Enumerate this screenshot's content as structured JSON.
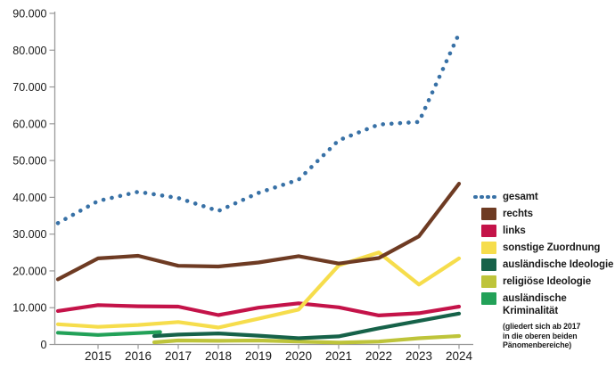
{
  "chart_data": {
    "type": "line",
    "x_unit": "year",
    "xlim": [
      2014,
      2024
    ],
    "ylim": [
      0,
      90000
    ],
    "grid": false,
    "legend_position": "right",
    "axis_color": "#999999",
    "text_color": "#1a1a1a",
    "y_ticks": [
      {
        "v": 0,
        "label": "0"
      },
      {
        "v": 10000,
        "label": "10.000"
      },
      {
        "v": 20000,
        "label": "20.000"
      },
      {
        "v": 30000,
        "label": "30.000"
      },
      {
        "v": 40000,
        "label": "40.000"
      },
      {
        "v": 50000,
        "label": "50.000"
      },
      {
        "v": 60000,
        "label": "60.000"
      },
      {
        "v": 70000,
        "label": "70.000"
      },
      {
        "v": 80000,
        "label": "80.000"
      },
      {
        "v": 90000,
        "label": "90.000"
      }
    ],
    "x_ticks": [
      {
        "v": 2015,
        "label": "2015"
      },
      {
        "v": 2016,
        "label": "2016"
      },
      {
        "v": 2017,
        "label": "2017"
      },
      {
        "v": 2018,
        "label": "2018"
      },
      {
        "v": 2019,
        "label": "2019"
      },
      {
        "v": 2020,
        "label": "2020"
      },
      {
        "v": 2021,
        "label": "2021"
      },
      {
        "v": 2022,
        "label": "2022"
      },
      {
        "v": 2023,
        "label": "2023"
      },
      {
        "v": 2024,
        "label": "2024"
      }
    ],
    "series": [
      {
        "id": "religioese_ideologie",
        "name": "religiöse Ideologie",
        "color": "#bec43a",
        "style": "solid",
        "points": [
          [
            2016.4,
            600
          ],
          [
            2017,
            1100
          ],
          [
            2018,
            1000
          ],
          [
            2019,
            1100
          ],
          [
            2020,
            800
          ],
          [
            2021,
            500
          ],
          [
            2022,
            800
          ],
          [
            2023,
            1700
          ],
          [
            2024,
            2300
          ]
        ]
      },
      {
        "id": "auslaendische_kriminalitaet",
        "name": "ausländische Kriminalität",
        "color": "#22a158",
        "style": "solid",
        "points": [
          [
            2014,
            3200
          ],
          [
            2015,
            2600
          ],
          [
            2016,
            3100
          ],
          [
            2016.55,
            3400
          ]
        ]
      },
      {
        "id": "auslaendische_ideologie",
        "name": "ausländische Ideologie",
        "color": "#166249",
        "style": "solid",
        "points": [
          [
            2016.4,
            2300
          ],
          [
            2017,
            2700
          ],
          [
            2018,
            3000
          ],
          [
            2019,
            2400
          ],
          [
            2020,
            1700
          ],
          [
            2021,
            2200
          ],
          [
            2022,
            4400
          ],
          [
            2023,
            6400
          ],
          [
            2024,
            8400
          ]
        ]
      },
      {
        "id": "links",
        "name": "links",
        "color": "#c41349",
        "style": "solid",
        "points": [
          [
            2014,
            9100
          ],
          [
            2015,
            10700
          ],
          [
            2016,
            10400
          ],
          [
            2017,
            10300
          ],
          [
            2018,
            8000
          ],
          [
            2019,
            10000
          ],
          [
            2020,
            11200
          ],
          [
            2021,
            10100
          ],
          [
            2022,
            7900
          ],
          [
            2023,
            8500
          ],
          [
            2024,
            10300
          ]
        ]
      },
      {
        "id": "sonstige_zuordnung",
        "name": "sonstige Zuordnung",
        "color": "#f6dd4c",
        "style": "solid",
        "points": [
          [
            2014,
            5500
          ],
          [
            2015,
            4800
          ],
          [
            2016,
            5300
          ],
          [
            2017,
            6100
          ],
          [
            2018,
            4600
          ],
          [
            2019,
            7000
          ],
          [
            2020,
            9500
          ],
          [
            2021,
            21500
          ],
          [
            2022,
            25000
          ],
          [
            2023,
            16300
          ],
          [
            2024,
            23400
          ]
        ]
      },
      {
        "id": "rechts",
        "name": "rechts",
        "color": "#6e3b23",
        "style": "solid",
        "points": [
          [
            2014,
            17700
          ],
          [
            2015,
            23400
          ],
          [
            2016,
            24100
          ],
          [
            2017,
            21400
          ],
          [
            2018,
            21200
          ],
          [
            2019,
            22300
          ],
          [
            2020,
            24000
          ],
          [
            2021,
            22000
          ],
          [
            2022,
            23500
          ],
          [
            2023,
            29400
          ],
          [
            2024,
            43700
          ]
        ]
      },
      {
        "id": "gesamt",
        "name": "gesamt",
        "color": "#3871a6",
        "style": "dotted",
        "points": [
          [
            2014,
            33000
          ],
          [
            2015,
            39000
          ],
          [
            2016,
            41500
          ],
          [
            2017,
            39800
          ],
          [
            2018,
            36300
          ],
          [
            2019,
            41200
          ],
          [
            2020,
            44800
          ],
          [
            2021,
            55500
          ],
          [
            2022,
            59800
          ],
          [
            2023,
            60500
          ],
          [
            2024,
            84500
          ]
        ]
      }
    ]
  },
  "legend": {
    "items": [
      {
        "series": "gesamt",
        "label": "gesamt",
        "swatch": "dots",
        "color": "#3871a6"
      },
      {
        "series": "rechts",
        "label": "rechts",
        "swatch": "square",
        "color": "#6e3b23"
      },
      {
        "series": "links",
        "label": "links",
        "swatch": "square",
        "color": "#c41349"
      },
      {
        "series": "sonstige_zuordnung",
        "label": "sonstige Zuordnung",
        "swatch": "square",
        "color": "#f6dd4c"
      },
      {
        "series": "auslaendische_ideologie",
        "label": "ausländische Ideologie",
        "swatch": "square",
        "color": "#166249"
      },
      {
        "series": "religioese_ideologie",
        "label": "religiöse Ideologie",
        "swatch": "square",
        "color": "#bec43a"
      },
      {
        "series": "auslaendische_kriminalitaet",
        "label": "ausländische\nKriminalität",
        "swatch": "square",
        "color": "#22a158",
        "note": "(gliedert sich ab 2017\nin die oberen beiden\nPänomenbereiche)"
      }
    ]
  }
}
